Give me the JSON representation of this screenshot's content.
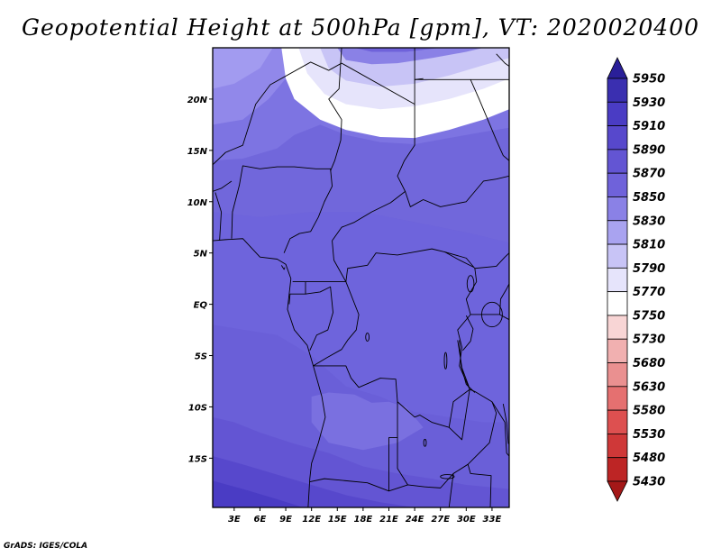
{
  "chart_data": {
    "type": "heatmap",
    "title": "Geopotential Height at 500hPa [gpm], VT: 2020020400",
    "credit": "GrADS: IGES/COLA",
    "x_ticks": [
      "3E",
      "6E",
      "9E",
      "12E",
      "15E",
      "18E",
      "21E",
      "24E",
      "27E",
      "30E",
      "33E"
    ],
    "x_tick_values": [
      3,
      6,
      9,
      12,
      15,
      18,
      21,
      24,
      27,
      30,
      33
    ],
    "y_ticks": [
      "20N",
      "15N",
      "10N",
      "5N",
      "EQ",
      "5S",
      "10S",
      "15S"
    ],
    "y_tick_values": [
      20,
      15,
      10,
      5,
      0,
      -5,
      -10,
      -15
    ],
    "xlim": [
      0.5,
      35
    ],
    "ylim": [
      -19.8,
      25
    ],
    "colorbar": {
      "levels": [
        "5950",
        "5930",
        "5910",
        "5890",
        "5870",
        "5850",
        "5830",
        "5810",
        "5790",
        "5770",
        "5750",
        "5730",
        "5680",
        "5630",
        "5580",
        "5530",
        "5480",
        "5430"
      ],
      "colors": [
        "#2a1f99",
        "#3a2fb0",
        "#4a3cc4",
        "#5748cc",
        "#6355d3",
        "#6f62da",
        "#8a81e6",
        "#a9a3f0",
        "#c8c4f6",
        "#e6e4fb",
        "#ffffff",
        "#f8d5d5",
        "#f1b0b0",
        "#ea9090",
        "#e57070",
        "#dd5050",
        "#cf3838",
        "#bd2525",
        "#a41818"
      ]
    },
    "field": {
      "contour_bands": [
        {
          "level": 5760,
          "points": [
            [
              8.5,
              25
            ],
            [
              9,
              22
            ],
            [
              10,
              20
            ],
            [
              13,
              18
            ],
            [
              16,
              17
            ],
            [
              20,
              16.3
            ],
            [
              24,
              16.2
            ],
            [
              28,
              17
            ],
            [
              32,
              18
            ],
            [
              35,
              19
            ],
            [
              35,
              25
            ]
          ]
        },
        {
          "level": 5780,
          "points": [
            [
              10.5,
              25
            ],
            [
              11.5,
              22.5
            ],
            [
              13.5,
              20.5
            ],
            [
              16,
              19.5
            ],
            [
              20,
              19
            ],
            [
              24,
              19.3
            ],
            [
              28,
              20
            ],
            [
              32,
              21
            ],
            [
              35,
              22
            ],
            [
              35,
              25
            ]
          ]
        },
        {
          "level": 5800,
          "points": [
            [
              13,
              25
            ],
            [
              14,
              23
            ],
            [
              16,
              21.8
            ],
            [
              20,
              21.2
            ],
            [
              24,
              21.5
            ],
            [
              28,
              22.3
            ],
            [
              32,
              23.3
            ],
            [
              35,
              24
            ],
            [
              35,
              25
            ]
          ]
        },
        {
          "level": 5830,
          "points": [
            [
              15,
              25
            ],
            [
              16,
              23.8
            ],
            [
              19,
              23.4
            ],
            [
              22,
              23.5
            ],
            [
              26,
              24
            ],
            [
              30,
              24.6
            ],
            [
              32,
              25
            ]
          ]
        },
        {
          "level": 5860,
          "points": [
            [
              17,
              25
            ],
            [
              19,
              24.6
            ],
            [
              23,
              24.6
            ],
            [
              27,
              25
            ]
          ]
        },
        {
          "level": 5880,
          "points": [
            [
              0.5,
              -11
            ],
            [
              3,
              -11.5
            ],
            [
              6,
              -12.5
            ],
            [
              10,
              -13.6
            ],
            [
              14,
              -14.5
            ],
            [
              18,
              -15.8
            ],
            [
              22,
              -16.5
            ],
            [
              26,
              -17
            ],
            [
              30,
              -17.6
            ],
            [
              35,
              -18
            ],
            [
              35,
              -19.8
            ],
            [
              0.5,
              -19.8
            ]
          ]
        },
        {
          "level": 5900,
          "points": [
            [
              0.5,
              -14.8
            ],
            [
              4,
              -15.6
            ],
            [
              8,
              -16.6
            ],
            [
              12,
              -17.6
            ],
            [
              16,
              -18.6
            ],
            [
              20,
              -19.3
            ],
            [
              24,
              -19.8
            ],
            [
              0.5,
              -19.8
            ]
          ]
        },
        {
          "level": 5920,
          "points": [
            [
              0.5,
              -17.2
            ],
            [
              4,
              -18
            ],
            [
              8,
              -19
            ],
            [
              11,
              -19.8
            ],
            [
              0.5,
              -19.8
            ]
          ]
        }
      ]
    }
  }
}
